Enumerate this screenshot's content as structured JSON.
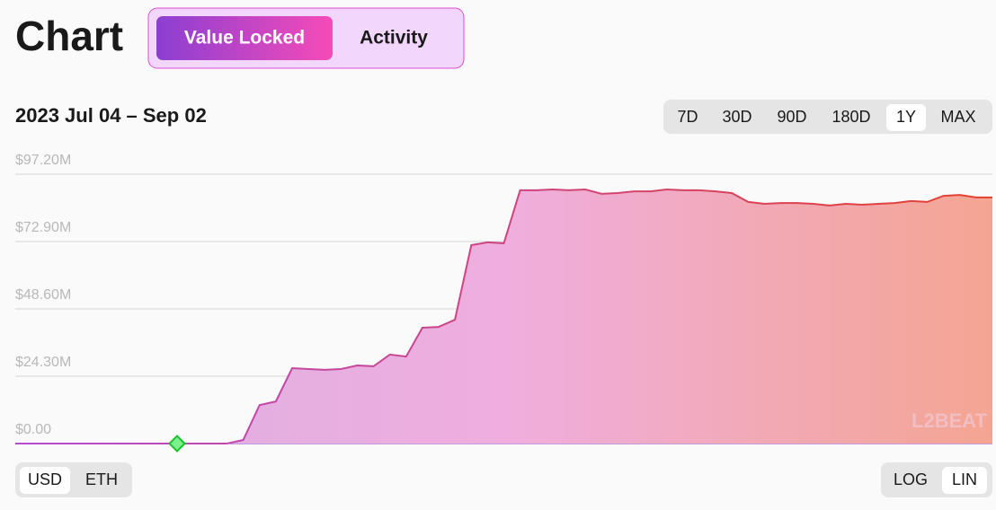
{
  "header": {
    "title": "Chart",
    "tabs": [
      "Value Locked",
      "Activity"
    ],
    "active_tab": 0
  },
  "date_range": "2023 Jul 04 – Sep 02",
  "range_buttons": [
    "7D",
    "30D",
    "90D",
    "180D",
    "1Y",
    "MAX"
  ],
  "active_range": 4,
  "currency_buttons": [
    "USD",
    "ETH"
  ],
  "active_currency": 0,
  "scale_buttons": [
    "LOG",
    "LIN"
  ],
  "active_scale": 1,
  "watermark": "L2BEAT",
  "chart_data": {
    "type": "area",
    "values": [
      0,
      0,
      0,
      0,
      0,
      0,
      0,
      0,
      0,
      0,
      0,
      0,
      0,
      0,
      1300000,
      13900000,
      15200000,
      27200000,
      26900000,
      26600000,
      26900000,
      28200000,
      27900000,
      32100000,
      31400000,
      41800000,
      42100000,
      44700000,
      71600000,
      72600000,
      72300000,
      91400000,
      91400000,
      91700000,
      91400000,
      91700000,
      90100000,
      90400000,
      91000000,
      91000000,
      91700000,
      91400000,
      91400000,
      91000000,
      90400000,
      87200000,
      86500000,
      86800000,
      86800000,
      86500000,
      85900000,
      86500000,
      86200000,
      86500000,
      86800000,
      87500000,
      87200000,
      89400000,
      89700000,
      88800000,
      88800000
    ],
    "colors": [
      "#b54ad2",
      "#e5412f"
    ],
    "fill_colors": [
      "#d9b0e2",
      "#efaede",
      "#f4a592"
    ],
    "ylim": [
      0,
      97200000
    ],
    "yticks": [
      {
        "value": 0,
        "label": "$0.00"
      },
      {
        "value": 24300000,
        "label": "$24.30M"
      },
      {
        "value": 48600000,
        "label": "$48.60M"
      },
      {
        "value": 72900000,
        "label": "$72.90M"
      },
      {
        "value": 97200000,
        "label": "$97.20M"
      }
    ],
    "grid": true
  }
}
